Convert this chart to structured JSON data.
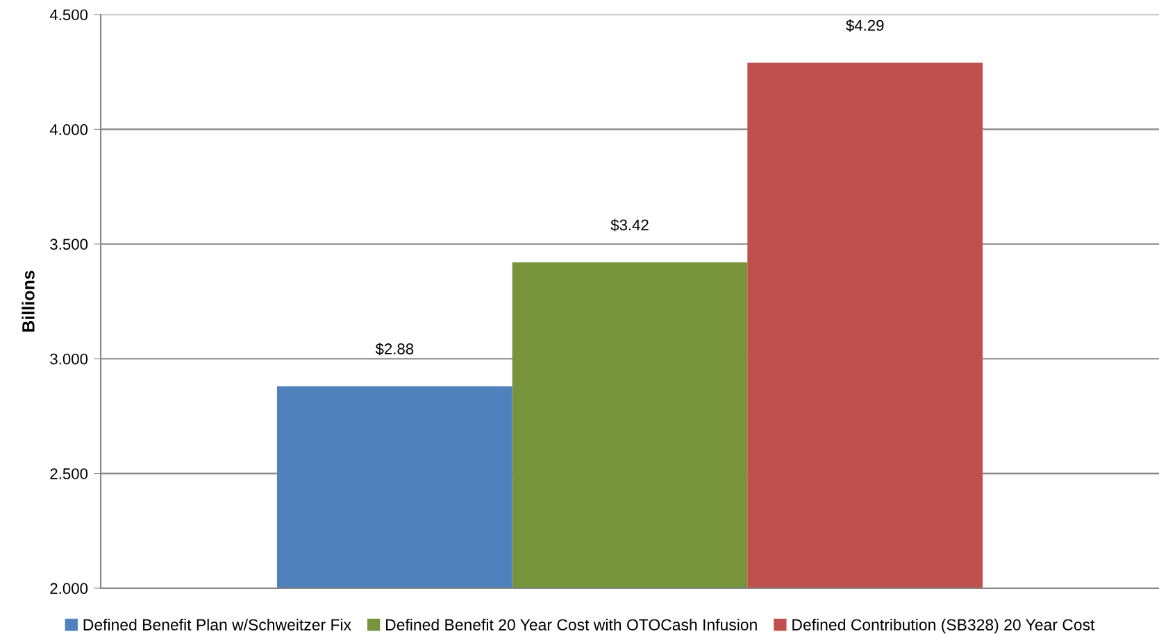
{
  "chart_data": {
    "type": "bar",
    "ylabel": "Billions",
    "categories": [
      null
    ],
    "series": [
      {
        "name": "Defined Benefit Plan w/Schweitzer Fix",
        "color": "#4f81bd",
        "values": [
          2.88
        ],
        "value_labels": [
          "$2.88"
        ]
      },
      {
        "name": "Defined Benefit 20 Year Cost with OTOCash Infusion",
        "color": "#77933c",
        "values": [
          3.42
        ],
        "value_labels": [
          "$3.42"
        ]
      },
      {
        "name": "Defined Contribution (SB328) 20 Year Cost",
        "color": "#c0504d",
        "values": [
          4.29
        ],
        "value_labels": [
          "$4.29"
        ]
      }
    ],
    "ylim": [
      2.0,
      4.5
    ],
    "yticks": [
      {
        "value": 2.0,
        "label": "2.000"
      },
      {
        "value": 2.5,
        "label": "2.500"
      },
      {
        "value": 3.0,
        "label": "3.000"
      },
      {
        "value": 3.5,
        "label": "3.500"
      },
      {
        "value": 4.0,
        "label": "4.000"
      },
      {
        "value": 4.5,
        "label": "4.500"
      }
    ],
    "grid": "y",
    "legend": "bottom"
  }
}
